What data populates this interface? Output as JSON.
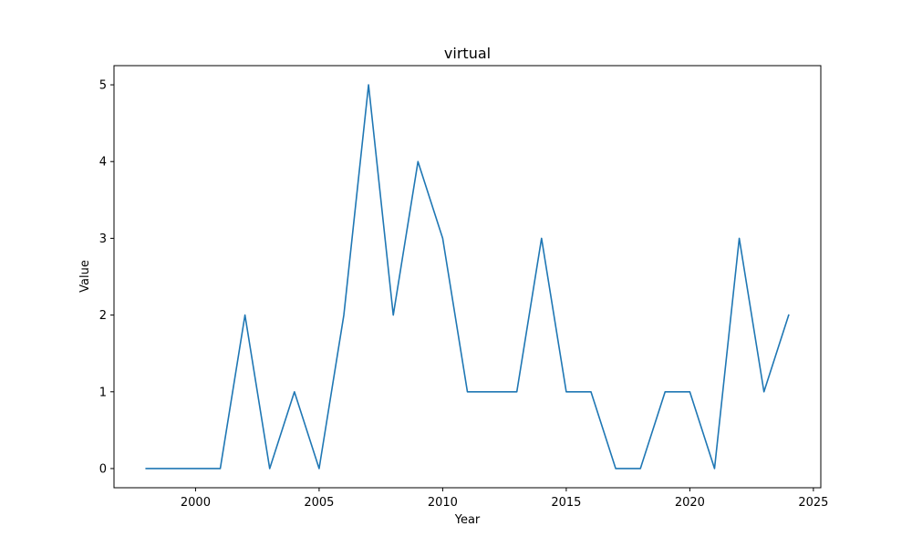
{
  "chart_data": {
    "type": "line",
    "title": "virtual",
    "xlabel": "Year",
    "ylabel": "Value",
    "xlim": [
      1996.7,
      2025.3
    ],
    "ylim": [
      -0.25,
      5.25
    ],
    "xticks": [
      2000,
      2005,
      2010,
      2015,
      2020,
      2025
    ],
    "yticks": [
      0,
      1,
      2,
      3,
      4,
      5
    ],
    "grid": false,
    "legend": "none",
    "series": [
      {
        "color": "#1f77b4",
        "x": [
          1998,
          1999,
          2000,
          2001,
          2002,
          2003,
          2004,
          2005,
          2006,
          2007,
          2008,
          2009,
          2010,
          2011,
          2012,
          2013,
          2014,
          2015,
          2016,
          2017,
          2018,
          2019,
          2020,
          2021,
          2022,
          2023,
          2024
        ],
        "values": [
          0,
          0,
          0,
          0,
          2,
          0,
          1,
          0,
          2,
          5,
          2,
          4,
          3,
          1,
          1,
          1,
          3,
          1,
          1,
          0,
          0,
          1,
          1,
          0,
          3,
          1,
          2
        ]
      }
    ]
  }
}
